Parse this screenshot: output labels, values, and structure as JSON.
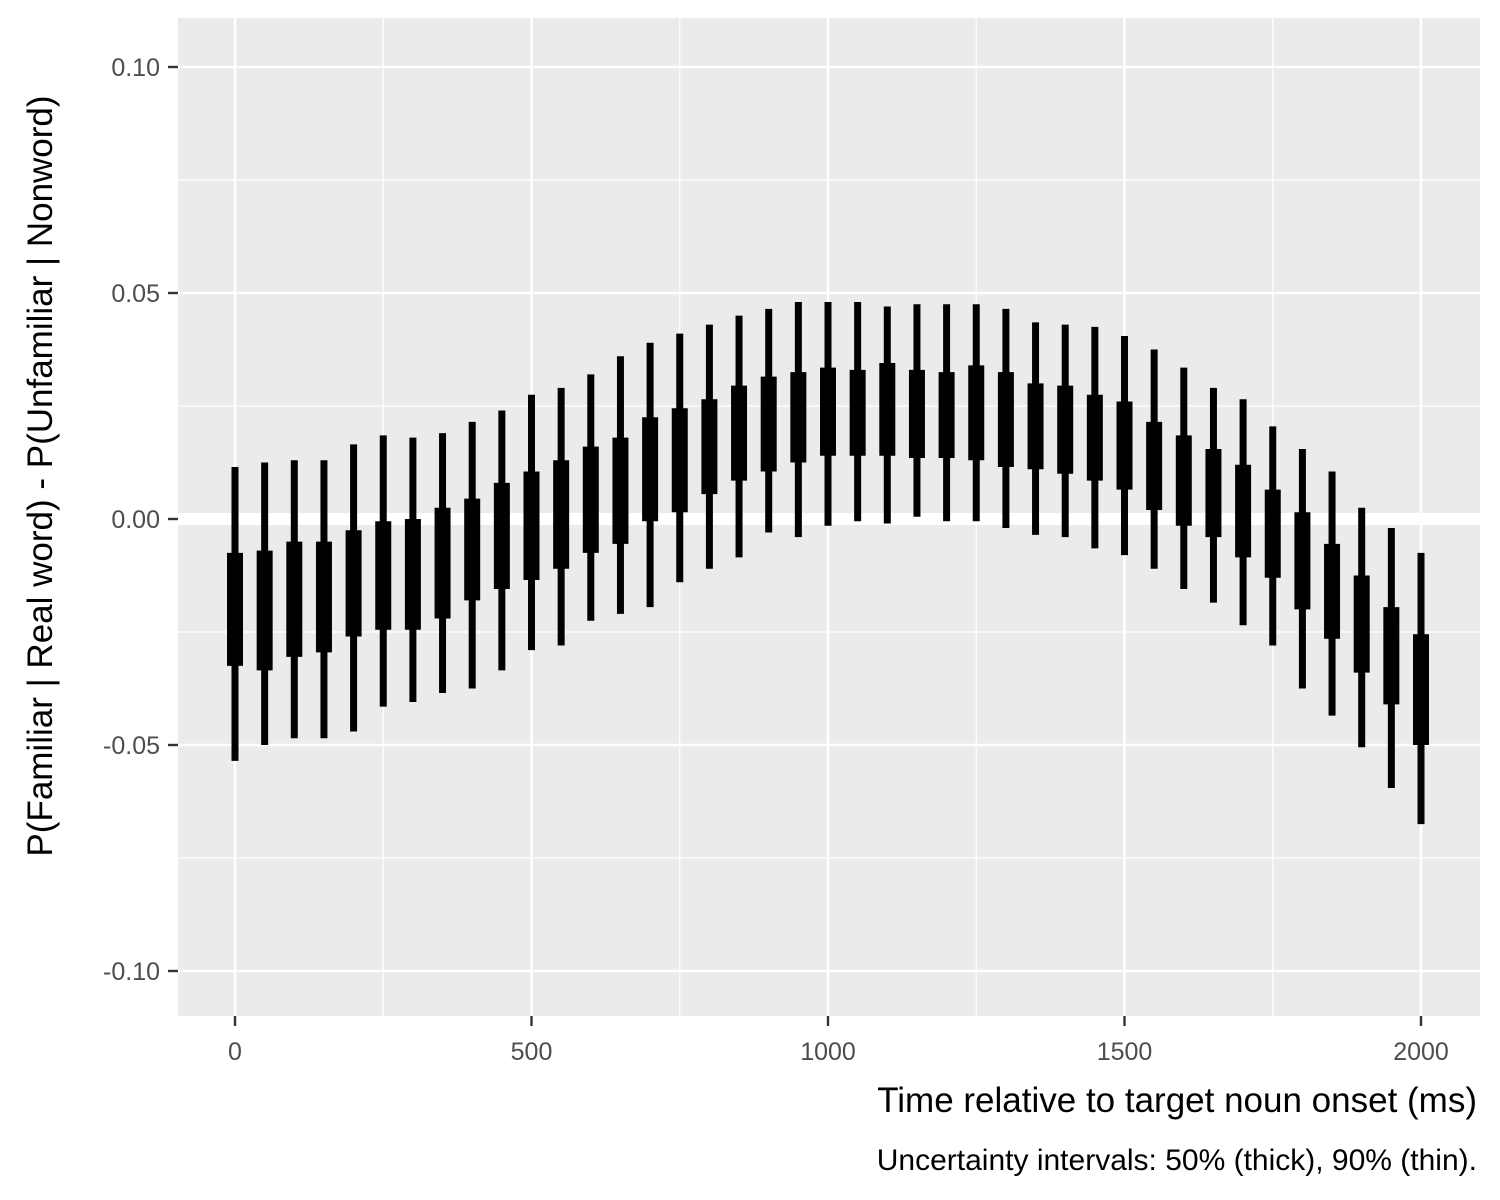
{
  "chart_data": {
    "type": "interval",
    "xlabel": "Time relative to target noun onset (ms)",
    "ylabel": "P(Familiar | Real word) - P(Unfamiliar | Nonword)",
    "caption": "Uncertainty intervals: 50% (thick), 90% (thin).",
    "xlim": [
      -100,
      2100
    ],
    "ylim": [
      -0.11,
      0.11
    ],
    "x_ticks": [
      0,
      500,
      1000,
      1500,
      2000
    ],
    "x_tick_labels": [
      "0",
      "500",
      "1000",
      "1500",
      "2000"
    ],
    "y_ticks": [
      -0.1,
      -0.05,
      0.0,
      0.05,
      0.1
    ],
    "y_tick_labels": [
      "-0.10",
      "-0.05",
      "0.00",
      "0.05",
      "0.10"
    ],
    "grid": true,
    "background": "#ebebeb",
    "mark_color": "#000000",
    "intervals": [
      {
        "x": 0,
        "lo90": -0.0535,
        "lo50": -0.0325,
        "hi50": -0.0075,
        "hi90": 0.0115
      },
      {
        "x": 50,
        "lo90": -0.05,
        "lo50": -0.0335,
        "hi50": -0.007,
        "hi90": 0.0125
      },
      {
        "x": 100,
        "lo90": -0.0485,
        "lo50": -0.0305,
        "hi50": -0.005,
        "hi90": 0.013
      },
      {
        "x": 150,
        "lo90": -0.0485,
        "lo50": -0.0295,
        "hi50": -0.005,
        "hi90": 0.013
      },
      {
        "x": 200,
        "lo90": -0.047,
        "lo50": -0.026,
        "hi50": -0.0025,
        "hi90": 0.0165
      },
      {
        "x": 250,
        "lo90": -0.0415,
        "lo50": -0.0245,
        "hi50": -0.0005,
        "hi90": 0.0185
      },
      {
        "x": 300,
        "lo90": -0.0405,
        "lo50": -0.0245,
        "hi50": 0.0,
        "hi90": 0.018
      },
      {
        "x": 350,
        "lo90": -0.0385,
        "lo50": -0.022,
        "hi50": 0.0025,
        "hi90": 0.019
      },
      {
        "x": 400,
        "lo90": -0.0375,
        "lo50": -0.018,
        "hi50": 0.0045,
        "hi90": 0.0215
      },
      {
        "x": 450,
        "lo90": -0.0335,
        "lo50": -0.0155,
        "hi50": 0.008,
        "hi90": 0.024
      },
      {
        "x": 500,
        "lo90": -0.029,
        "lo50": -0.0135,
        "hi50": 0.0105,
        "hi90": 0.0275
      },
      {
        "x": 550,
        "lo90": -0.028,
        "lo50": -0.011,
        "hi50": 0.013,
        "hi90": 0.029
      },
      {
        "x": 600,
        "lo90": -0.0225,
        "lo50": -0.0075,
        "hi50": 0.016,
        "hi90": 0.032
      },
      {
        "x": 650,
        "lo90": -0.021,
        "lo50": -0.0055,
        "hi50": 0.018,
        "hi90": 0.036
      },
      {
        "x": 700,
        "lo90": -0.0195,
        "lo50": -0.0005,
        "hi50": 0.0225,
        "hi90": 0.039
      },
      {
        "x": 750,
        "lo90": -0.014,
        "lo50": 0.0015,
        "hi50": 0.0245,
        "hi90": 0.041
      },
      {
        "x": 800,
        "lo90": -0.011,
        "lo50": 0.0055,
        "hi50": 0.0265,
        "hi90": 0.043
      },
      {
        "x": 850,
        "lo90": -0.0085,
        "lo50": 0.0085,
        "hi50": 0.0295,
        "hi90": 0.045
      },
      {
        "x": 900,
        "lo90": -0.003,
        "lo50": 0.0105,
        "hi50": 0.0315,
        "hi90": 0.0465
      },
      {
        "x": 950,
        "lo90": -0.004,
        "lo50": 0.0125,
        "hi50": 0.0325,
        "hi90": 0.048
      },
      {
        "x": 1000,
        "lo90": -0.0015,
        "lo50": 0.014,
        "hi50": 0.0335,
        "hi90": 0.048
      },
      {
        "x": 1050,
        "lo90": -0.0005,
        "lo50": 0.014,
        "hi50": 0.033,
        "hi90": 0.048
      },
      {
        "x": 1100,
        "lo90": -0.001,
        "lo50": 0.014,
        "hi50": 0.0345,
        "hi90": 0.047
      },
      {
        "x": 1150,
        "lo90": 0.0005,
        "lo50": 0.0135,
        "hi50": 0.033,
        "hi90": 0.0475
      },
      {
        "x": 1200,
        "lo90": -0.0005,
        "lo50": 0.0135,
        "hi50": 0.0325,
        "hi90": 0.0475
      },
      {
        "x": 1250,
        "lo90": -0.0005,
        "lo50": 0.013,
        "hi50": 0.034,
        "hi90": 0.0475
      },
      {
        "x": 1300,
        "lo90": -0.002,
        "lo50": 0.0115,
        "hi50": 0.0325,
        "hi90": 0.0465
      },
      {
        "x": 1350,
        "lo90": -0.0035,
        "lo50": 0.011,
        "hi50": 0.03,
        "hi90": 0.0435
      },
      {
        "x": 1400,
        "lo90": -0.004,
        "lo50": 0.01,
        "hi50": 0.0295,
        "hi90": 0.043
      },
      {
        "x": 1450,
        "lo90": -0.0065,
        "lo50": 0.0085,
        "hi50": 0.0275,
        "hi90": 0.0425
      },
      {
        "x": 1500,
        "lo90": -0.008,
        "lo50": 0.0065,
        "hi50": 0.026,
        "hi90": 0.0405
      },
      {
        "x": 1550,
        "lo90": -0.011,
        "lo50": 0.002,
        "hi50": 0.0215,
        "hi90": 0.0375
      },
      {
        "x": 1600,
        "lo90": -0.0155,
        "lo50": -0.0015,
        "hi50": 0.0185,
        "hi90": 0.0335
      },
      {
        "x": 1650,
        "lo90": -0.0185,
        "lo50": -0.004,
        "hi50": 0.0155,
        "hi90": 0.029
      },
      {
        "x": 1700,
        "lo90": -0.0235,
        "lo50": -0.0085,
        "hi50": 0.012,
        "hi90": 0.0265
      },
      {
        "x": 1750,
        "lo90": -0.028,
        "lo50": -0.013,
        "hi50": 0.0065,
        "hi90": 0.0205
      },
      {
        "x": 1800,
        "lo90": -0.0375,
        "lo50": -0.02,
        "hi50": 0.0015,
        "hi90": 0.0155
      },
      {
        "x": 1850,
        "lo90": -0.0435,
        "lo50": -0.0265,
        "hi50": -0.0055,
        "hi90": 0.0105
      },
      {
        "x": 1900,
        "lo90": -0.0505,
        "lo50": -0.034,
        "hi50": -0.0125,
        "hi90": 0.0025
      },
      {
        "x": 1950,
        "lo90": -0.0595,
        "lo50": -0.041,
        "hi50": -0.0195,
        "hi90": -0.002
      },
      {
        "x": 2000,
        "lo90": -0.0675,
        "lo50": -0.05,
        "hi50": -0.0255,
        "hi90": -0.0075
      }
    ]
  }
}
